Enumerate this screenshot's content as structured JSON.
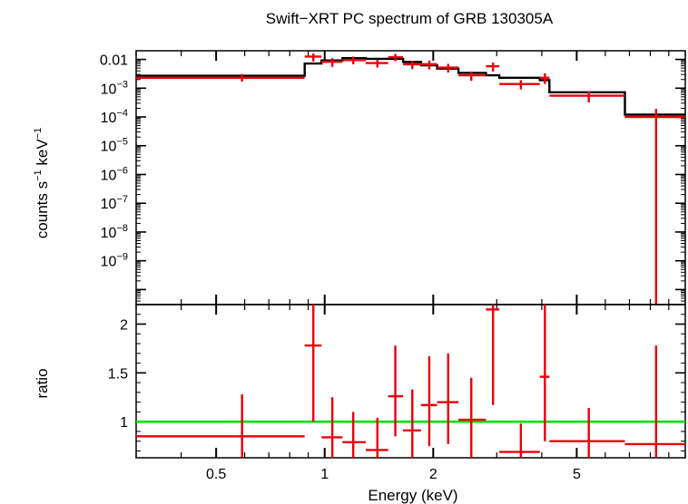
{
  "chart_data": {
    "type": "scatter",
    "title": "Swift−XRT PC spectrum of GRB 130305A",
    "xlabel": "Energy (keV)",
    "x_scale": "log",
    "xlim": [
      0.3,
      10
    ],
    "x_ticks": [
      {
        "value": 0.5,
        "label": "0.5"
      },
      {
        "value": 1,
        "label": "1"
      },
      {
        "value": 2,
        "label": "2"
      },
      {
        "value": 5,
        "label": "5"
      }
    ],
    "colors": {
      "data": "#e8000b",
      "model": "#000000",
      "unity": "#00e000"
    },
    "panels": [
      {
        "name": "spectrum",
        "ylabel_main": "counts s",
        "ylabel_exp1": "−1",
        "ylabel_mid": " keV",
        "ylabel_exp2": "−1",
        "y_scale": "log",
        "ylim": [
          3e-11,
          0.02
        ],
        "y_ticks": [
          {
            "value": 0.01,
            "label": "0.01"
          },
          {
            "value": 0.001,
            "base": "10",
            "exp": "−3"
          },
          {
            "value": 0.0001,
            "base": "10",
            "exp": "−4"
          },
          {
            "value": 1e-05,
            "base": "10",
            "exp": "−5"
          },
          {
            "value": 1e-06,
            "base": "10",
            "exp": "−6"
          },
          {
            "value": 1e-07,
            "base": "10",
            "exp": "−7"
          },
          {
            "value": 1e-08,
            "base": "10",
            "exp": "−8"
          },
          {
            "value": 1e-09,
            "base": "10",
            "exp": "−9"
          }
        ],
        "data": [
          {
            "xlo": 0.3,
            "xhi": 0.88,
            "x": 0.59,
            "y": 0.0023,
            "ylo": 0.0017,
            "yhi": 0.0031
          },
          {
            "xlo": 0.88,
            "xhi": 0.98,
            "x": 0.93,
            "y": 0.0125,
            "ylo": 0.0085,
            "yhi": 0.016
          },
          {
            "xlo": 0.98,
            "xhi": 1.12,
            "x": 1.05,
            "y": 0.0083,
            "ylo": 0.0055,
            "yhi": 0.011
          },
          {
            "xlo": 1.12,
            "xhi": 1.3,
            "x": 1.2,
            "y": 0.0095,
            "ylo": 0.0068,
            "yhi": 0.0125
          },
          {
            "xlo": 1.3,
            "xhi": 1.5,
            "x": 1.4,
            "y": 0.0075,
            "ylo": 0.0052,
            "yhi": 0.0099
          },
          {
            "xlo": 1.5,
            "xhi": 1.65,
            "x": 1.57,
            "y": 0.012,
            "ylo": 0.0087,
            "yhi": 0.0155
          },
          {
            "xlo": 1.65,
            "xhi": 1.85,
            "x": 1.75,
            "y": 0.0068,
            "ylo": 0.0046,
            "yhi": 0.009
          },
          {
            "xlo": 1.85,
            "xhi": 2.05,
            "x": 1.95,
            "y": 0.0068,
            "ylo": 0.0045,
            "yhi": 0.0091
          },
          {
            "xlo": 2.05,
            "xhi": 2.35,
            "x": 2.2,
            "y": 0.0052,
            "ylo": 0.0035,
            "yhi": 0.007
          },
          {
            "xlo": 2.35,
            "xhi": 2.8,
            "x": 2.55,
            "y": 0.0028,
            "ylo": 0.0018,
            "yhi": 0.0038
          },
          {
            "xlo": 2.8,
            "xhi": 3.05,
            "x": 2.93,
            "y": 0.0058,
            "ylo": 0.0038,
            "yhi": 0.0078
          },
          {
            "xlo": 3.05,
            "xhi": 3.95,
            "x": 3.5,
            "y": 0.0014,
            "ylo": 0.0009,
            "yhi": 0.0019
          },
          {
            "xlo": 3.95,
            "xhi": 4.2,
            "x": 4.08,
            "y": 0.0023,
            "ylo": 0.0014,
            "yhi": 0.0033
          },
          {
            "xlo": 4.2,
            "xhi": 6.8,
            "x": 5.4,
            "y": 0.00055,
            "ylo": 0.00032,
            "yhi": 0.00078
          },
          {
            "xlo": 6.8,
            "xhi": 10,
            "x": 8.3,
            "y": 0.0001,
            "ylo": 1e-11,
            "yhi": 0.00019
          }
        ],
        "model": [
          {
            "xlo": 0.3,
            "xhi": 0.88,
            "y": 0.0027
          },
          {
            "xlo": 0.88,
            "xhi": 0.98,
            "y": 0.0072
          },
          {
            "xlo": 0.98,
            "xhi": 1.12,
            "y": 0.0092
          },
          {
            "xlo": 1.12,
            "xhi": 1.3,
            "y": 0.011
          },
          {
            "xlo": 1.3,
            "xhi": 1.65,
            "y": 0.0105
          },
          {
            "xlo": 1.65,
            "xhi": 1.85,
            "y": 0.0082
          },
          {
            "xlo": 1.85,
            "xhi": 2.05,
            "y": 0.0062
          },
          {
            "xlo": 2.05,
            "xhi": 2.35,
            "y": 0.0048
          },
          {
            "xlo": 2.35,
            "xhi": 2.8,
            "y": 0.0034
          },
          {
            "xlo": 2.8,
            "xhi": 3.05,
            "y": 0.0028
          },
          {
            "xlo": 3.05,
            "xhi": 3.95,
            "y": 0.0023
          },
          {
            "xlo": 3.95,
            "xhi": 4.2,
            "y": 0.0019
          },
          {
            "xlo": 4.2,
            "xhi": 6.8,
            "y": 0.00072
          },
          {
            "xlo": 6.8,
            "xhi": 10,
            "y": 0.00012
          }
        ]
      },
      {
        "name": "ratio",
        "ylabel": "ratio",
        "y_scale": "linear",
        "ylim": [
          0.63,
          2.2
        ],
        "y_ticks": [
          {
            "value": 1,
            "label": "1"
          },
          {
            "value": 1.5,
            "label": "1.5"
          },
          {
            "value": 2,
            "label": "2"
          }
        ],
        "unity": 1,
        "data": [
          {
            "xlo": 0.3,
            "xhi": 0.88,
            "x": 0.59,
            "y": 0.85,
            "ylo": 0.63,
            "yhi": 1.28
          },
          {
            "xlo": 0.88,
            "xhi": 0.98,
            "x": 0.93,
            "y": 1.78,
            "ylo": 1.0,
            "yhi": 2.2
          },
          {
            "xlo": 0.98,
            "xhi": 1.12,
            "x": 1.05,
            "y": 0.84,
            "ylo": 0.63,
            "yhi": 1.25
          },
          {
            "xlo": 1.12,
            "xhi": 1.3,
            "x": 1.2,
            "y": 0.79,
            "ylo": 0.63,
            "yhi": 1.1
          },
          {
            "xlo": 1.3,
            "xhi": 1.5,
            "x": 1.4,
            "y": 0.71,
            "ylo": 0.63,
            "yhi": 1.04
          },
          {
            "xlo": 1.5,
            "xhi": 1.65,
            "x": 1.57,
            "y": 1.26,
            "ylo": 0.85,
            "yhi": 1.78
          },
          {
            "xlo": 1.65,
            "xhi": 1.85,
            "x": 1.75,
            "y": 0.91,
            "ylo": 0.63,
            "yhi": 1.33
          },
          {
            "xlo": 1.85,
            "xhi": 2.05,
            "x": 1.95,
            "y": 1.17,
            "ylo": 0.75,
            "yhi": 1.67
          },
          {
            "xlo": 2.05,
            "xhi": 2.35,
            "x": 2.2,
            "y": 1.2,
            "ylo": 0.77,
            "yhi": 1.7
          },
          {
            "xlo": 2.35,
            "xhi": 2.8,
            "x": 2.55,
            "y": 1.02,
            "ylo": 0.63,
            "yhi": 1.45
          },
          {
            "xlo": 2.8,
            "xhi": 3.05,
            "x": 2.93,
            "y": 2.15,
            "ylo": 1.17,
            "yhi": 2.2
          },
          {
            "xlo": 3.05,
            "xhi": 3.95,
            "x": 3.5,
            "y": 0.69,
            "ylo": 0.63,
            "yhi": 0.98
          },
          {
            "xlo": 3.95,
            "xhi": 4.2,
            "x": 4.08,
            "y": 1.46,
            "ylo": 0.8,
            "yhi": 2.2
          },
          {
            "xlo": 4.2,
            "xhi": 6.8,
            "x": 5.4,
            "y": 0.8,
            "ylo": 0.63,
            "yhi": 1.14
          },
          {
            "xlo": 6.8,
            "xhi": 10,
            "x": 8.3,
            "y": 0.77,
            "ylo": 0.63,
            "yhi": 1.78
          }
        ]
      }
    ]
  }
}
